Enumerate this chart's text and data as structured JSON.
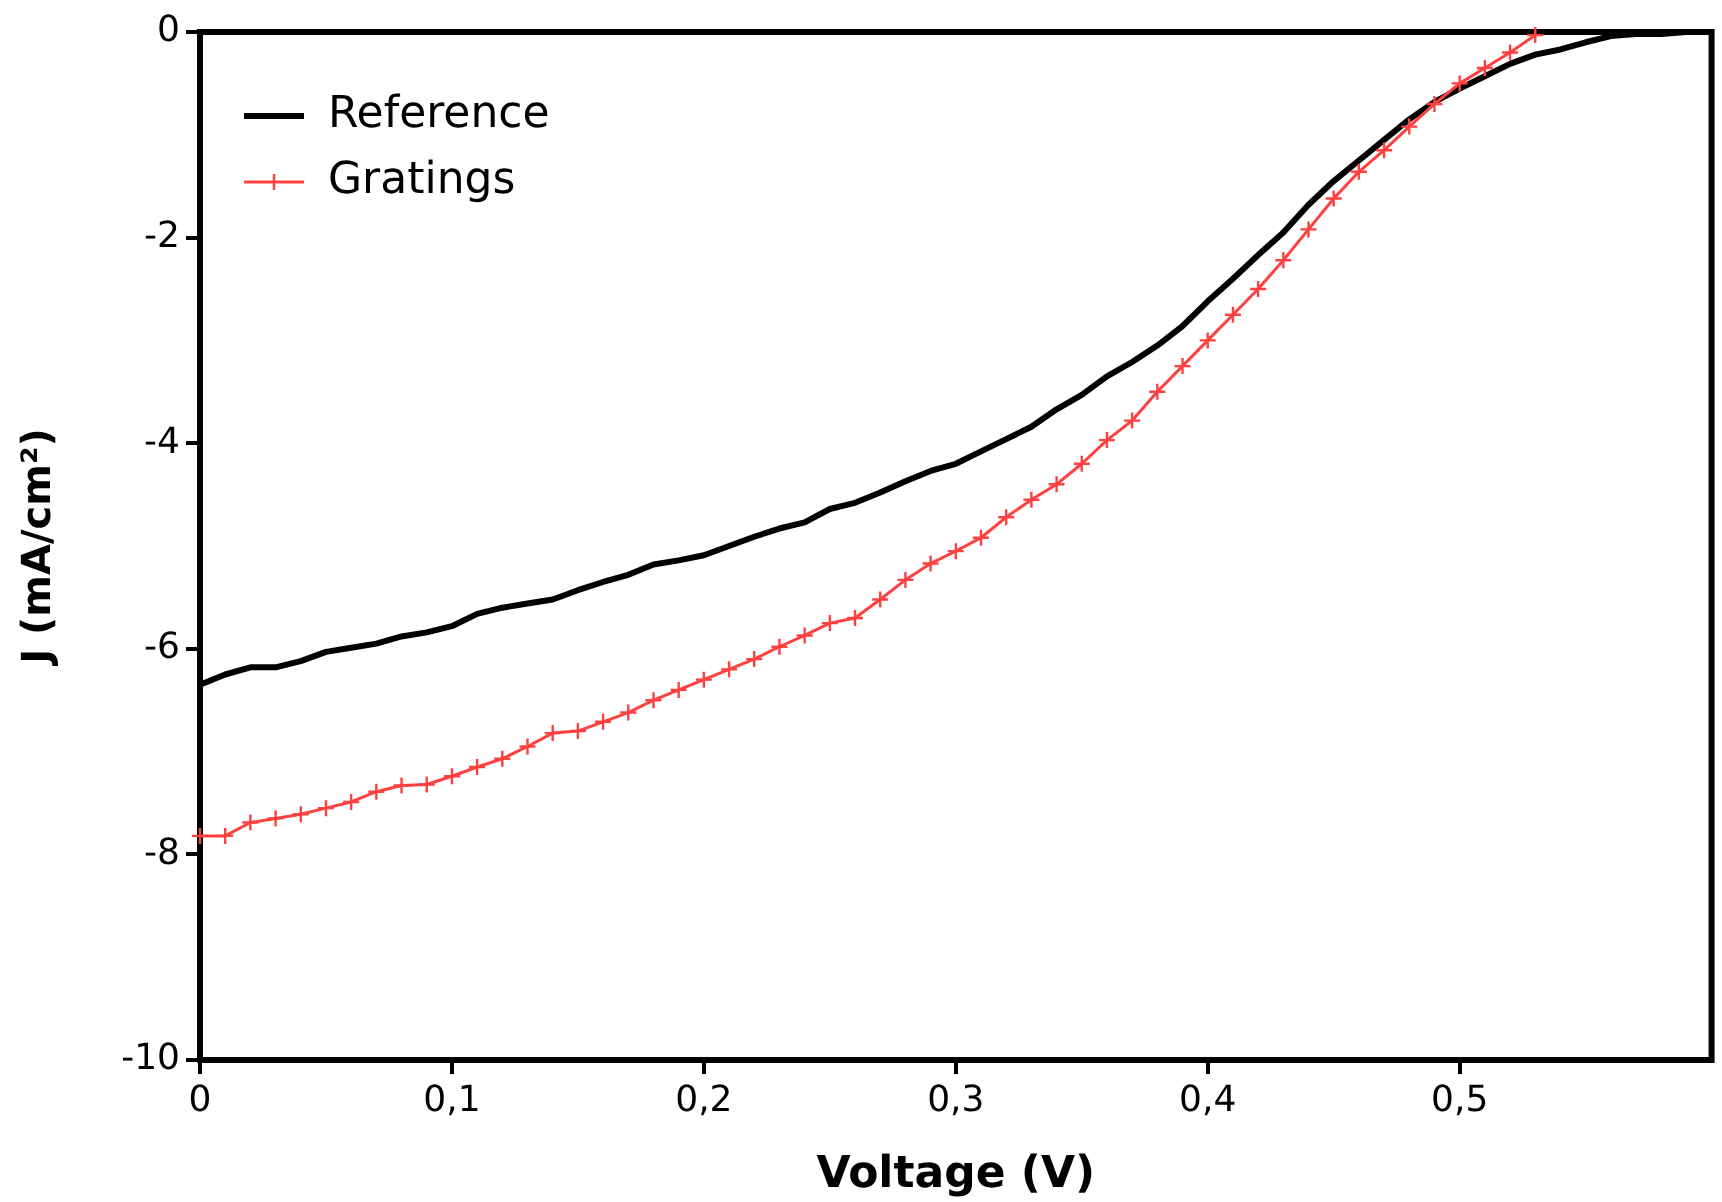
{
  "chart_data": {
    "type": "line",
    "xlabel": "Voltage (V)",
    "ylabel": "J (mA/cm²)",
    "xlim": [
      0,
      0.6
    ],
    "ylim": [
      -10,
      0
    ],
    "xticks": [
      0,
      {
        "value": 0.1,
        "label": "0,1"
      },
      {
        "value": 0.2,
        "label": "0,2"
      },
      {
        "value": 0.3,
        "label": "0,3"
      },
      {
        "value": 0.4,
        "label": "0,4"
      },
      {
        "value": 0.5,
        "label": "0,5"
      }
    ],
    "yticks": [
      -10,
      -8,
      -6,
      -4,
      -2,
      0
    ],
    "grid": false,
    "legend": "top left",
    "series": [
      {
        "name": "Reference",
        "color": "#000000",
        "marker": "none",
        "x": [
          0,
          0.01,
          0.02,
          0.03,
          0.04,
          0.05,
          0.06,
          0.07,
          0.08,
          0.09,
          0.1,
          0.11,
          0.12,
          0.13,
          0.14,
          0.15,
          0.16,
          0.17,
          0.18,
          0.19,
          0.2,
          0.21,
          0.22,
          0.23,
          0.24,
          0.25,
          0.26,
          0.27,
          0.28,
          0.29,
          0.3,
          0.31,
          0.32,
          0.33,
          0.34,
          0.35,
          0.36,
          0.37,
          0.38,
          0.39,
          0.4,
          0.41,
          0.42,
          0.43,
          0.44,
          0.45,
          0.46,
          0.47,
          0.48,
          0.49,
          0.5,
          0.51,
          0.52,
          0.53,
          0.54,
          0.55,
          0.56,
          0.57,
          0.58,
          0.59,
          0.6
        ],
        "values": [
          -6.35,
          -6.25,
          -6.18,
          -6.18,
          -6.12,
          -6.03,
          -5.99,
          -5.95,
          -5.88,
          -5.84,
          -5.78,
          -5.66,
          -5.6,
          -5.56,
          -5.52,
          -5.43,
          -5.35,
          -5.28,
          -5.18,
          -5.14,
          -5.09,
          -5.0,
          -4.91,
          -4.83,
          -4.77,
          -4.64,
          -4.58,
          -4.48,
          -4.37,
          -4.27,
          -4.2,
          -4.08,
          -3.96,
          -3.84,
          -3.67,
          -3.53,
          -3.35,
          -3.21,
          -3.05,
          -2.86,
          -2.62,
          -2.4,
          -2.17,
          -1.95,
          -1.68,
          -1.45,
          -1.25,
          -1.05,
          -0.85,
          -0.68,
          -0.55,
          -0.43,
          -0.31,
          -0.22,
          -0.17,
          -0.1,
          -0.04,
          -0.02,
          -0.02,
          0,
          0
        ]
      },
      {
        "name": "Gratings",
        "color": "#ff4040",
        "marker": "cross",
        "x": [
          0,
          0.01,
          0.02,
          0.03,
          0.04,
          0.05,
          0.06,
          0.07,
          0.08,
          0.09,
          0.1,
          0.11,
          0.12,
          0.13,
          0.14,
          0.15,
          0.16,
          0.17,
          0.18,
          0.19,
          0.2,
          0.21,
          0.22,
          0.23,
          0.24,
          0.25,
          0.26,
          0.27,
          0.28,
          0.29,
          0.3,
          0.31,
          0.32,
          0.33,
          0.34,
          0.35,
          0.36,
          0.37,
          0.38,
          0.39,
          0.4,
          0.41,
          0.42,
          0.43,
          0.44,
          0.45,
          0.46,
          0.47,
          0.48,
          0.49,
          0.5,
          0.51,
          0.52,
          0.53
        ],
        "values": [
          -7.82,
          -7.82,
          -7.69,
          -7.65,
          -7.61,
          -7.55,
          -7.49,
          -7.39,
          -7.33,
          -7.32,
          -7.24,
          -7.15,
          -7.07,
          -6.95,
          -6.82,
          -6.8,
          -6.71,
          -6.62,
          -6.5,
          -6.4,
          -6.3,
          -6.2,
          -6.1,
          -5.98,
          -5.87,
          -5.75,
          -5.7,
          -5.52,
          -5.33,
          -5.17,
          -5.05,
          -4.92,
          -4.72,
          -4.55,
          -4.4,
          -4.2,
          -3.97,
          -3.78,
          -3.5,
          -3.25,
          -3.0,
          -2.75,
          -2.5,
          -2.22,
          -1.92,
          -1.62,
          -1.36,
          -1.15,
          -0.92,
          -0.7,
          -0.5,
          -0.35,
          -0.2,
          -0.03
        ]
      }
    ]
  }
}
